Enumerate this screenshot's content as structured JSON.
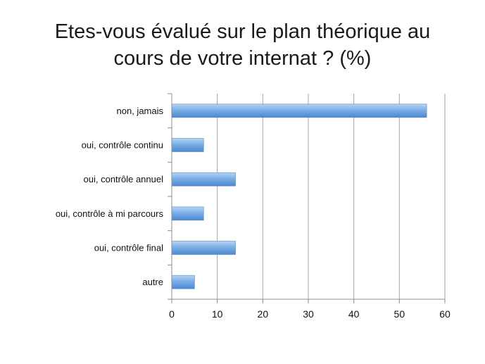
{
  "slide": {
    "title_line1": "Etes-vous évalué sur le plan théorique au",
    "title_line2": "cours de votre internat ? (%)"
  },
  "chart_data": {
    "type": "bar",
    "orientation": "horizontal",
    "categories": [
      "non, jamais",
      "oui, contrôle continu",
      "oui, contrôle annuel",
      "oui, contrôle à mi parcours",
      "oui, contrôle final",
      "autre"
    ],
    "values": [
      56,
      7,
      14,
      7,
      14,
      5
    ],
    "xlim": [
      0,
      60
    ],
    "xticks": [
      0,
      10,
      20,
      30,
      40,
      50,
      60
    ],
    "grid": true,
    "legend": "none",
    "bar_color": "#7aaee6",
    "bar_color_light": "#b9d4f3",
    "bar_color_dark": "#4f88cf"
  }
}
